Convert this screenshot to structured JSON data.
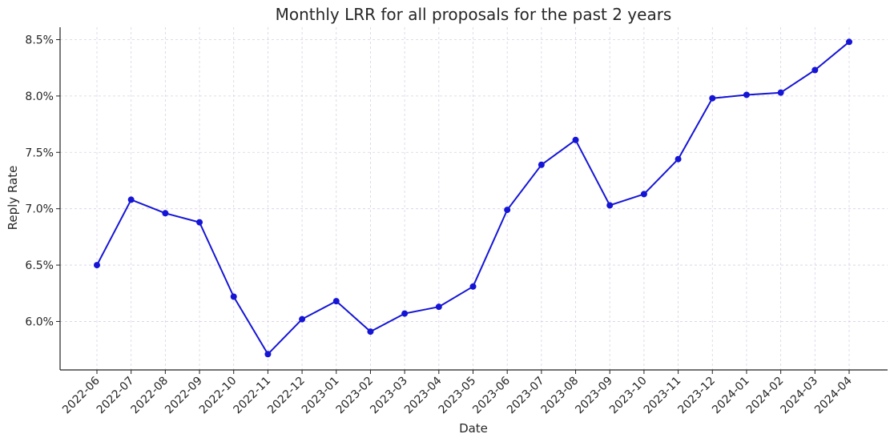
{
  "chart_data": {
    "type": "line",
    "title": "Monthly LRR for all proposals for the past 2 years",
    "xlabel": "Date",
    "ylabel": "Reply Rate",
    "y_unit": "%",
    "ylim": [
      5.57,
      8.61
    ],
    "y_ticks": [
      6.0,
      6.5,
      7.0,
      7.5,
      8.0,
      8.5
    ],
    "y_tick_labels": [
      "6.0%",
      "6.5%",
      "7.0%",
      "7.5%",
      "8.0%",
      "8.5%"
    ],
    "grid": true,
    "legend": "none",
    "x": [
      "2022-06",
      "2022-07",
      "2022-08",
      "2022-09",
      "2022-10",
      "2022-11",
      "2022-12",
      "2023-01",
      "2023-02",
      "2023-03",
      "2023-04",
      "2023-05",
      "2023-06",
      "2023-07",
      "2023-08",
      "2023-09",
      "2023-10",
      "2023-11",
      "2023-12",
      "2024-01",
      "2024-02",
      "2024-03",
      "2024-04"
    ],
    "series": [
      {
        "color": "#1515d6",
        "values": [
          6.5,
          7.08,
          6.96,
          6.88,
          6.22,
          5.71,
          6.02,
          6.18,
          5.91,
          6.07,
          6.13,
          6.31,
          6.99,
          7.39,
          7.61,
          7.03,
          7.13,
          7.44,
          7.98,
          8.01,
          8.03,
          8.23,
          8.48
        ]
      }
    ]
  },
  "colors": {
    "line": "#1515d6",
    "grid": "#d9cfe6",
    "axis": "#222222",
    "text": "#262626"
  }
}
